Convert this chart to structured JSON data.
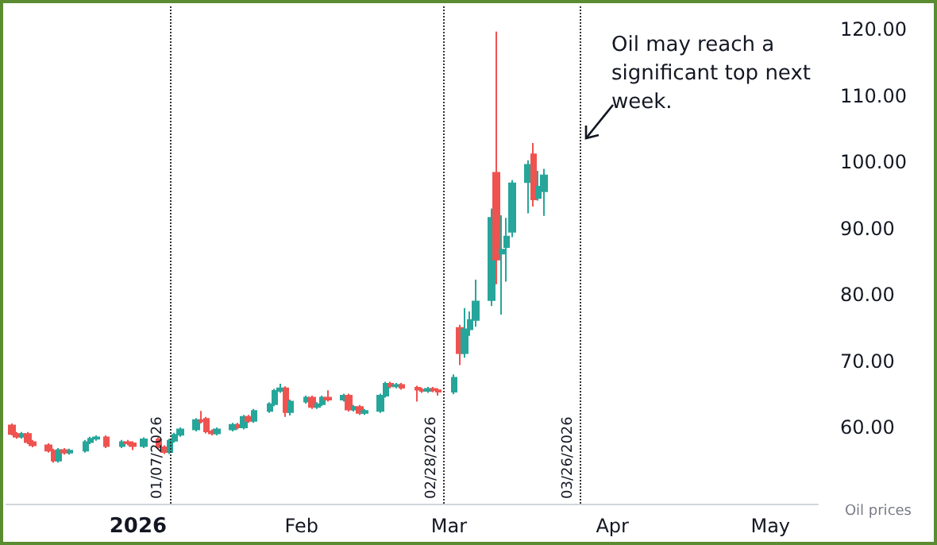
{
  "chart_data": {
    "type": "candlestick",
    "x": [
      "2025-12-08",
      "2025-12-09",
      "2025-12-10",
      "2025-12-11",
      "2025-12-12",
      "2025-12-15",
      "2025-12-16",
      "2025-12-17",
      "2025-12-18",
      "2025-12-19",
      "2025-12-22",
      "2025-12-23",
      "2025-12-24",
      "2025-12-26",
      "2025-12-29",
      "2025-12-30",
      "2025-12-31",
      "2026-01-02",
      "2026-01-05",
      "2026-01-06",
      "2026-01-07",
      "2026-01-08",
      "2026-01-09",
      "2026-01-12",
      "2026-01-13",
      "2026-01-14",
      "2026-01-15",
      "2026-01-16",
      "2026-01-19",
      "2026-01-20",
      "2026-01-21",
      "2026-01-22",
      "2026-01-23",
      "2026-01-26",
      "2026-01-27",
      "2026-01-28",
      "2026-01-29",
      "2026-01-30",
      "2026-02-02",
      "2026-02-03",
      "2026-02-04",
      "2026-02-05",
      "2026-02-06",
      "2026-02-09",
      "2026-02-10",
      "2026-02-11",
      "2026-02-12",
      "2026-02-13",
      "2026-02-16",
      "2026-02-17",
      "2026-02-18",
      "2026-02-19",
      "2026-02-20",
      "2026-02-23",
      "2026-02-24",
      "2026-02-25",
      "2026-02-26",
      "2026-02-27",
      "2026-03-02",
      "2026-03-03",
      "2026-03-04",
      "2026-03-05",
      "2026-03-06",
      "2026-03-09",
      "2026-03-10",
      "2026-03-11",
      "2026-03-12",
      "2026-03-13",
      "2026-03-16",
      "2026-03-17",
      "2026-03-18",
      "2026-03-19"
    ],
    "ohlc": [
      [
        60.3,
        60.6,
        58.8,
        59.0
      ],
      [
        59.0,
        59.3,
        58.3,
        58.6
      ],
      [
        58.6,
        59.3,
        58.3,
        59.0
      ],
      [
        59.0,
        59.3,
        57.5,
        57.8
      ],
      [
        57.8,
        58.1,
        57.0,
        57.3
      ],
      [
        57.3,
        57.6,
        56.2,
        56.5
      ],
      [
        56.5,
        56.8,
        54.7,
        55.0
      ],
      [
        55.0,
        56.9,
        54.7,
        56.6
      ],
      [
        56.6,
        56.9,
        55.9,
        56.2
      ],
      [
        56.2,
        56.8,
        55.9,
        56.5
      ],
      [
        56.5,
        58.1,
        56.2,
        57.8
      ],
      [
        57.8,
        58.6,
        57.5,
        58.3
      ],
      [
        58.3,
        58.8,
        58.0,
        58.5
      ],
      [
        58.5,
        58.8,
        56.9,
        57.2
      ],
      [
        57.2,
        58.1,
        56.9,
        57.8
      ],
      [
        57.8,
        58.1,
        57.3,
        57.6
      ],
      [
        57.6,
        57.9,
        56.6,
        57.2
      ],
      [
        57.2,
        58.5,
        56.9,
        58.2
      ],
      [
        58.2,
        58.5,
        56.7,
        57.0
      ],
      [
        57.0,
        57.3,
        56.0,
        56.3
      ],
      [
        56.3,
        58.3,
        56.0,
        58.0
      ],
      [
        58.0,
        59.2,
        57.7,
        58.9
      ],
      [
        58.9,
        60.0,
        58.6,
        59.7
      ],
      [
        59.7,
        61.4,
        59.4,
        61.1
      ],
      [
        61.1,
        62.5,
        60.6,
        60.9
      ],
      [
        61.3,
        61.6,
        59.1,
        59.4
      ],
      [
        59.4,
        59.7,
        58.8,
        59.1
      ],
      [
        59.1,
        60.0,
        58.8,
        59.7
      ],
      [
        59.7,
        60.7,
        59.4,
        60.4
      ],
      [
        60.4,
        60.7,
        59.7,
        60.0
      ],
      [
        60.0,
        61.9,
        59.7,
        61.6
      ],
      [
        61.6,
        61.9,
        60.7,
        61.0
      ],
      [
        61.0,
        62.8,
        60.7,
        62.5
      ],
      [
        62.5,
        63.8,
        62.2,
        63.5
      ],
      [
        63.5,
        65.8,
        63.2,
        65.5
      ],
      [
        65.5,
        66.6,
        65.2,
        65.9
      ],
      [
        65.9,
        66.2,
        61.6,
        62.3
      ],
      [
        62.3,
        64.2,
        61.8,
        63.9
      ],
      [
        63.9,
        64.8,
        63.6,
        64.5
      ],
      [
        64.5,
        64.8,
        62.8,
        63.1
      ],
      [
        63.1,
        63.8,
        62.8,
        63.5
      ],
      [
        63.5,
        64.8,
        63.2,
        64.5
      ],
      [
        64.5,
        65.6,
        63.9,
        64.2
      ],
      [
        64.2,
        65.1,
        63.9,
        64.8
      ],
      [
        64.8,
        65.1,
        62.4,
        62.7
      ],
      [
        62.7,
        63.4,
        62.4,
        63.1
      ],
      [
        63.1,
        63.4,
        61.9,
        62.2
      ],
      [
        62.2,
        62.8,
        61.9,
        62.5
      ],
      [
        62.5,
        65.1,
        62.2,
        64.8
      ],
      [
        64.8,
        66.9,
        64.5,
        66.6
      ],
      [
        66.6,
        66.9,
        65.9,
        66.2
      ],
      [
        66.2,
        66.7,
        65.9,
        66.4
      ],
      [
        66.4,
        66.7,
        65.7,
        66.0
      ],
      [
        66.0,
        66.3,
        63.9,
        65.7
      ],
      [
        65.7,
        66.0,
        65.2,
        65.5
      ],
      [
        65.5,
        66.1,
        65.2,
        65.8
      ],
      [
        65.8,
        66.1,
        65.3,
        65.6
      ],
      [
        65.6,
        65.9,
        64.8,
        65.4
      ],
      [
        65.4,
        68.0,
        65.0,
        67.5
      ],
      [
        75.0,
        75.5,
        69.4,
        71.2
      ],
      [
        71.2,
        78.0,
        70.5,
        74.8
      ],
      [
        74.8,
        77.5,
        73.8,
        76.2
      ],
      [
        76.2,
        82.3,
        75.2,
        79.0
      ],
      [
        79.2,
        93.0,
        78.3,
        91.6
      ],
      [
        98.4,
        119.7,
        81.6,
        85.3
      ],
      [
        86.2,
        92.0,
        77.0,
        86.8
      ],
      [
        87.2,
        91.6,
        82.0,
        88.8
      ],
      [
        89.5,
        97.3,
        88.7,
        96.8
      ],
      [
        97.0,
        100.3,
        92.3,
        99.6
      ],
      [
        101.2,
        102.9,
        93.3,
        94.4
      ],
      [
        94.6,
        98.7,
        94.2,
        96.3
      ],
      [
        95.6,
        99.0,
        91.9,
        98.0
      ]
    ],
    "colors": [
      "#ef5350",
      "#ef5350",
      "#26a69a",
      "#ef5350",
      "#ef5350",
      "#ef5350",
      "#ef5350",
      "#26a69a",
      "#ef5350",
      "#26a69a",
      "#26a69a",
      "#26a69a",
      "#26a69a",
      "#ef5350",
      "#26a69a",
      "#ef5350",
      "#ef5350",
      "#26a69a",
      "#ef5350",
      "#ef5350",
      "#26a69a",
      "#26a69a",
      "#26a69a",
      "#26a69a",
      "#ef5350",
      "#ef5350",
      "#ef5350",
      "#26a69a",
      "#26a69a",
      "#ef5350",
      "#26a69a",
      "#ef5350",
      "#26a69a",
      "#26a69a",
      "#26a69a",
      "#26a69a",
      "#ef5350",
      "#26a69a",
      "#26a69a",
      "#ef5350",
      "#26a69a",
      "#26a69a",
      "#ef5350",
      "#26a69a",
      "#ef5350",
      "#26a69a",
      "#ef5350",
      "#26a69a",
      "#26a69a",
      "#26a69a",
      "#ef5350",
      "#26a69a",
      "#ef5350",
      "#ef5350",
      "#ef5350",
      "#26a69a",
      "#ef5350",
      "#ef5350",
      "#26a69a",
      "#ef5350",
      "#26a69a",
      "#26a69a",
      "#26a69a",
      "#26a69a",
      "#ef5350",
      "#26a69a",
      "#26a69a",
      "#26a69a",
      "#26a69a",
      "#ef5350",
      "#26a69a",
      "#26a69a"
    ],
    "xlim": [
      "2025-12-07",
      "2026-05-10"
    ],
    "xticks": [
      {
        "value": "2026-01-01",
        "label": "2026"
      },
      {
        "value": "2026-02-01",
        "label": "Feb"
      },
      {
        "value": "2026-03-01",
        "label": "Mar"
      },
      {
        "value": "2026-04-01",
        "label": "Apr"
      },
      {
        "value": "2026-05-01",
        "label": "May"
      }
    ],
    "ylim": [
      48.5,
      123.5
    ],
    "yticks": [
      {
        "value": 60,
        "label": "60.00"
      },
      {
        "value": 70,
        "label": "70.00"
      },
      {
        "value": 80,
        "label": "80.00"
      },
      {
        "value": 90,
        "label": "90.00"
      },
      {
        "value": 100,
        "label": "100.00"
      },
      {
        "value": 110,
        "label": "110.00"
      },
      {
        "value": 120,
        "label": "120.00"
      }
    ],
    "ref_lines": [
      {
        "axis": "x",
        "value": "2026-01-07",
        "label": "01/07/2026",
        "color": "#333333",
        "line_style": "dotted"
      },
      {
        "axis": "x",
        "value": "2026-02-28",
        "label": "02/28/2026",
        "color": "#333333",
        "line_style": "dotted"
      },
      {
        "axis": "x",
        "value": "2026-03-26",
        "label": "03/26/2026",
        "color": "#333333",
        "line_style": "dotted"
      }
    ],
    "annotations": [
      "Oil may reach a significant top next week.",
      "Oil prices"
    ]
  }
}
